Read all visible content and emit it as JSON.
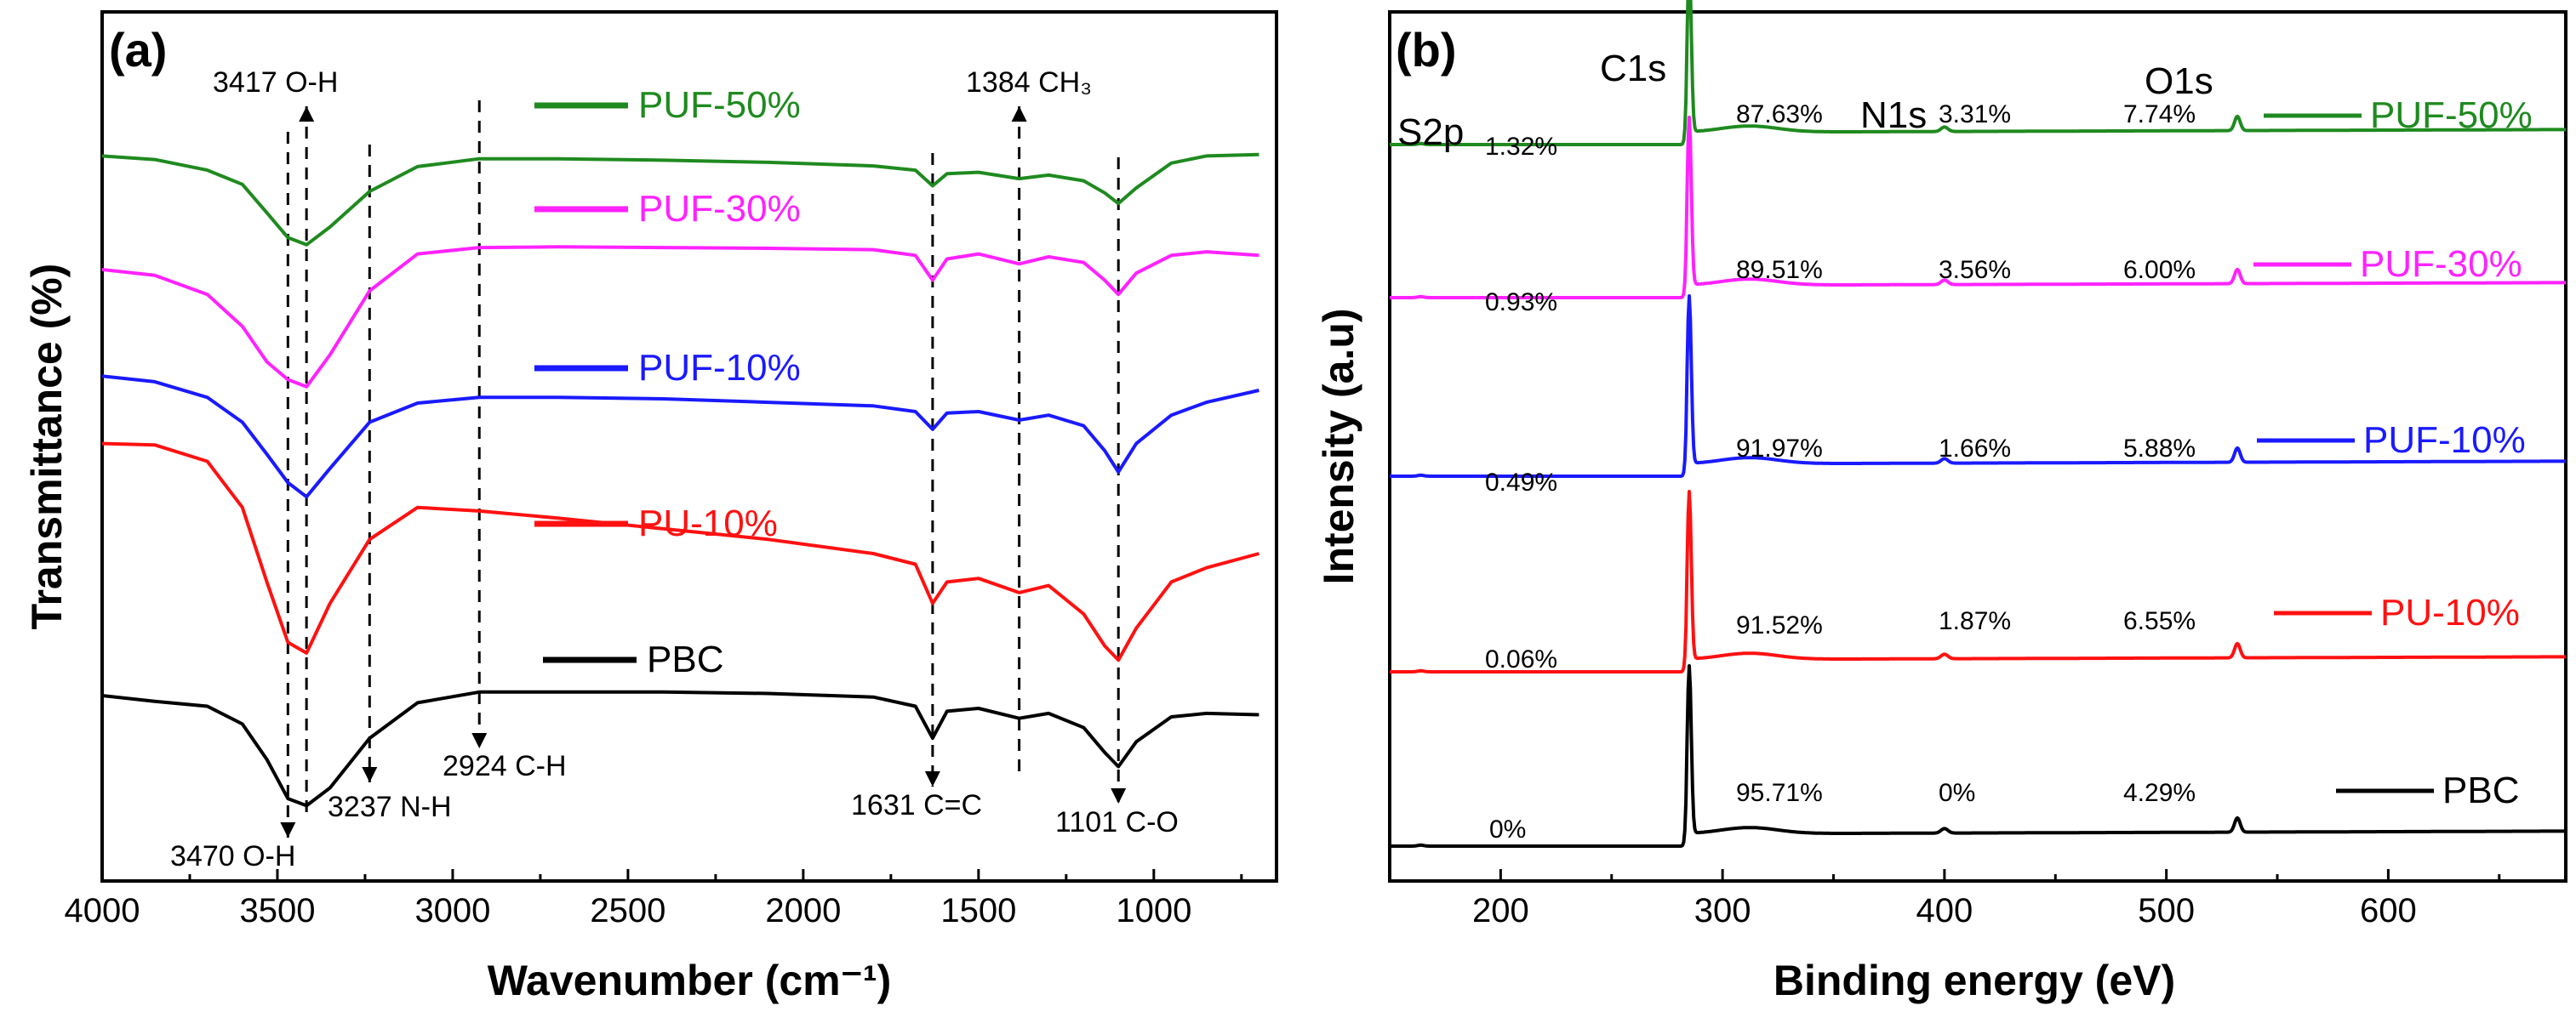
{
  "chart_data": [
    {
      "type": "line",
      "panel_label": "(a)",
      "xlabel": "Wavenumber (cm⁻¹)",
      "ylabel": "Transmittance (%)",
      "xlim": [
        4000,
        650
      ],
      "x_ticks": [
        "4000",
        "3500",
        "3000",
        "2500",
        "2000",
        "1500",
        "1000"
      ],
      "series": [
        {
          "name": "PUF-50%",
          "color": "#1f8a1f",
          "x": [
            4000,
            3850,
            3700,
            3600,
            3530,
            3470,
            3417,
            3350,
            3237,
            3100,
            2924,
            2700,
            2400,
            2100,
            1800,
            1680,
            1631,
            1590,
            1500,
            1384,
            1300,
            1200,
            1140,
            1101,
            1050,
            950,
            850,
            700
          ],
          "y": [
            96,
            95.5,
            94,
            92,
            88,
            84.5,
            83.5,
            86,
            91,
            94.5,
            95.6,
            95.6,
            95.4,
            95.1,
            94.6,
            94,
            91.8,
            93.5,
            93.7,
            92.8,
            93.3,
            92.5,
            90.8,
            89.3,
            91.5,
            95,
            96,
            96.2
          ]
        },
        {
          "name": "PUF-30%",
          "color": "#ff22ff",
          "x": [
            4000,
            3850,
            3700,
            3600,
            3530,
            3470,
            3417,
            3350,
            3237,
            3100,
            2924,
            2700,
            2400,
            2100,
            1800,
            1680,
            1631,
            1590,
            1500,
            1384,
            1300,
            1200,
            1140,
            1101,
            1050,
            950,
            850,
            700
          ],
          "y": [
            80,
            79.2,
            76.5,
            72,
            67,
            64.5,
            63.5,
            68,
            77,
            82.2,
            83.1,
            83.2,
            83.1,
            83,
            82.8,
            82,
            78.5,
            81.5,
            82.2,
            80.8,
            81.8,
            81,
            78.5,
            76.5,
            79.5,
            82,
            82.5,
            82
          ]
        },
        {
          "name": "PUF-10%",
          "color": "#1a1aff",
          "x": [
            4000,
            3850,
            3700,
            3600,
            3530,
            3470,
            3417,
            3350,
            3237,
            3100,
            2924,
            2700,
            2400,
            2100,
            1800,
            1680,
            1631,
            1590,
            1500,
            1384,
            1300,
            1200,
            1140,
            1101,
            1050,
            950,
            850,
            700
          ],
          "y": [
            65,
            64.2,
            62,
            58.5,
            54,
            50,
            48,
            52,
            58.5,
            61.2,
            62,
            62,
            61.8,
            61.3,
            60.8,
            60,
            57.5,
            59.8,
            60,
            58.8,
            59.5,
            58,
            54.5,
            51.5,
            55.5,
            59.5,
            61.3,
            63
          ]
        },
        {
          "name": "PU-10%",
          "color": "#ff1111",
          "x": [
            4000,
            3850,
            3700,
            3600,
            3530,
            3470,
            3417,
            3350,
            3237,
            3100,
            2924,
            2700,
            2400,
            2100,
            1800,
            1680,
            1631,
            1590,
            1500,
            1384,
            1300,
            1200,
            1140,
            1101,
            1050,
            950,
            850,
            700
          ],
          "y": [
            55.5,
            55.3,
            53,
            46.5,
            36,
            27.5,
            26,
            33,
            42,
            46.5,
            46,
            45,
            43.5,
            42,
            40,
            38.5,
            33,
            36,
            36.5,
            34.5,
            35.5,
            31.5,
            27,
            25,
            29.5,
            36,
            38,
            40
          ]
        },
        {
          "name": "PBC",
          "color": "#000000",
          "x": [
            4000,
            3850,
            3700,
            3600,
            3530,
            3470,
            3417,
            3350,
            3237,
            3100,
            2924,
            2700,
            2400,
            2100,
            1800,
            1680,
            1631,
            1590,
            1500,
            1384,
            1300,
            1200,
            1140,
            1101,
            1050,
            950,
            850,
            700
          ],
          "y": [
            20,
            19.2,
            18.5,
            16,
            11,
            5.5,
            4.5,
            7,
            14,
            19,
            20.5,
            20.5,
            20.5,
            20.3,
            19.8,
            18.5,
            14,
            17.8,
            18.2,
            16.8,
            17.5,
            15.5,
            12,
            10,
            13.5,
            17,
            17.5,
            17.3
          ]
        }
      ],
      "legend": [
        "PUF-50%",
        "PUF-30%",
        "PUF-10%",
        "PU-10%",
        "PBC"
      ],
      "annotations": [
        {
          "text": "3417 O-H",
          "x": 3417,
          "direction": "up"
        },
        {
          "text": "3470 O-H",
          "x": 3470,
          "direction": "down"
        },
        {
          "text": "3237 N-H",
          "x": 3237,
          "direction": "down"
        },
        {
          "text": "2924 C-H",
          "x": 2924,
          "direction": "down"
        },
        {
          "text": "1631 C=C",
          "x": 1631,
          "direction": "down"
        },
        {
          "text": "1384 CH₃",
          "x": 1384,
          "direction": "up"
        },
        {
          "text": "1101 C-O",
          "x": 1101,
          "direction": "down"
        }
      ]
    },
    {
      "type": "line",
      "panel_label": "(b)",
      "xlabel": "Binding energy (eV)",
      "ylabel": "Intensity (a.u)",
      "xlim": [
        150,
        680
      ],
      "x_ticks": [
        "200",
        "300",
        "400",
        "500",
        "600"
      ],
      "peak_labels": [
        "S2p",
        "C1s",
        "N1s",
        "O1s"
      ],
      "series": [
        {
          "name": "PUF-50%",
          "color": "#1f8a1f",
          "offset": 4,
          "percentages": {
            "S": "1.32%",
            "C": "87.63%",
            "N": "3.31%",
            "O": "7.74%"
          }
        },
        {
          "name": "PUF-30%",
          "color": "#ff22ff",
          "offset": 3,
          "percentages": {
            "S": "0.93%",
            "C": "89.51%",
            "N": "3.56%",
            "O": "6.00%"
          }
        },
        {
          "name": "PUF-10%",
          "color": "#1a1aff",
          "offset": 2,
          "percentages": {
            "S": "0.49%",
            "C": "91.97%",
            "N": "1.66%",
            "O": "5.88%"
          }
        },
        {
          "name": "PU-10%",
          "color": "#ff1111",
          "offset": 1,
          "percentages": {
            "S": "0.06%",
            "C": "91.52%",
            "N": "1.87%",
            "O": "6.55%"
          }
        },
        {
          "name": "PBC",
          "color": "#000000",
          "offset": 0,
          "percentages": {
            "S": "0%",
            "C": "95.71%",
            "N": "0%",
            "O": "4.29%"
          }
        }
      ],
      "legend": [
        "PUF-50%",
        "PUF-30%",
        "PUF-10%",
        "PU-10%",
        "PBC"
      ]
    }
  ]
}
